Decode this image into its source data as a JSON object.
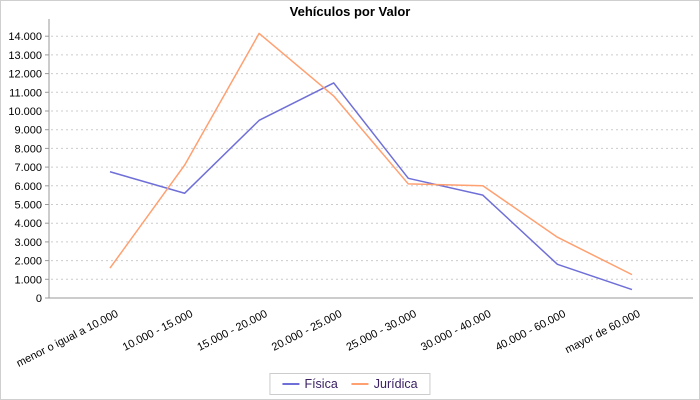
{
  "window": {
    "background": "#ffffff",
    "border_color": "#cfcfcf"
  },
  "chart_data": {
    "type": "line",
    "title": "Vehículos por Valor",
    "categories": [
      "menor o igual a 10.000",
      "10.000 - 15.000",
      "15.000 - 20.000",
      "20.000 - 25.000",
      "25.000 - 30.000",
      "30.000 - 40.000",
      "40.000 - 60.000",
      "mayor de 60.000"
    ],
    "series": [
      {
        "name": "Física",
        "color": "#6f6fd8",
        "values": [
          6750,
          5600,
          9500,
          11500,
          6400,
          5500,
          1800,
          450
        ]
      },
      {
        "name": "Jurídica",
        "color": "#ffa071",
        "values": [
          1600,
          7100,
          14150,
          10800,
          6100,
          6000,
          3250,
          1250
        ]
      }
    ],
    "y_axis": {
      "min": 0,
      "max": 14000,
      "step": 1000,
      "tick_labels": [
        "0",
        "1.000",
        "2.000",
        "3.000",
        "4.000",
        "5.000",
        "6.000",
        "7.000",
        "8.000",
        "9.000",
        "10.000",
        "11.000",
        "12.000",
        "13.000",
        "14.000"
      ]
    },
    "x_axis": {
      "label_rotation_deg": -27
    },
    "grid": "horizontal-dashed",
    "legend_position": "bottom",
    "colors": {
      "grid": "#cccccc",
      "axis": "#999999",
      "tick_text": "#000000",
      "legend_text": "#3a2063",
      "legend_border": "#cccccc"
    }
  }
}
